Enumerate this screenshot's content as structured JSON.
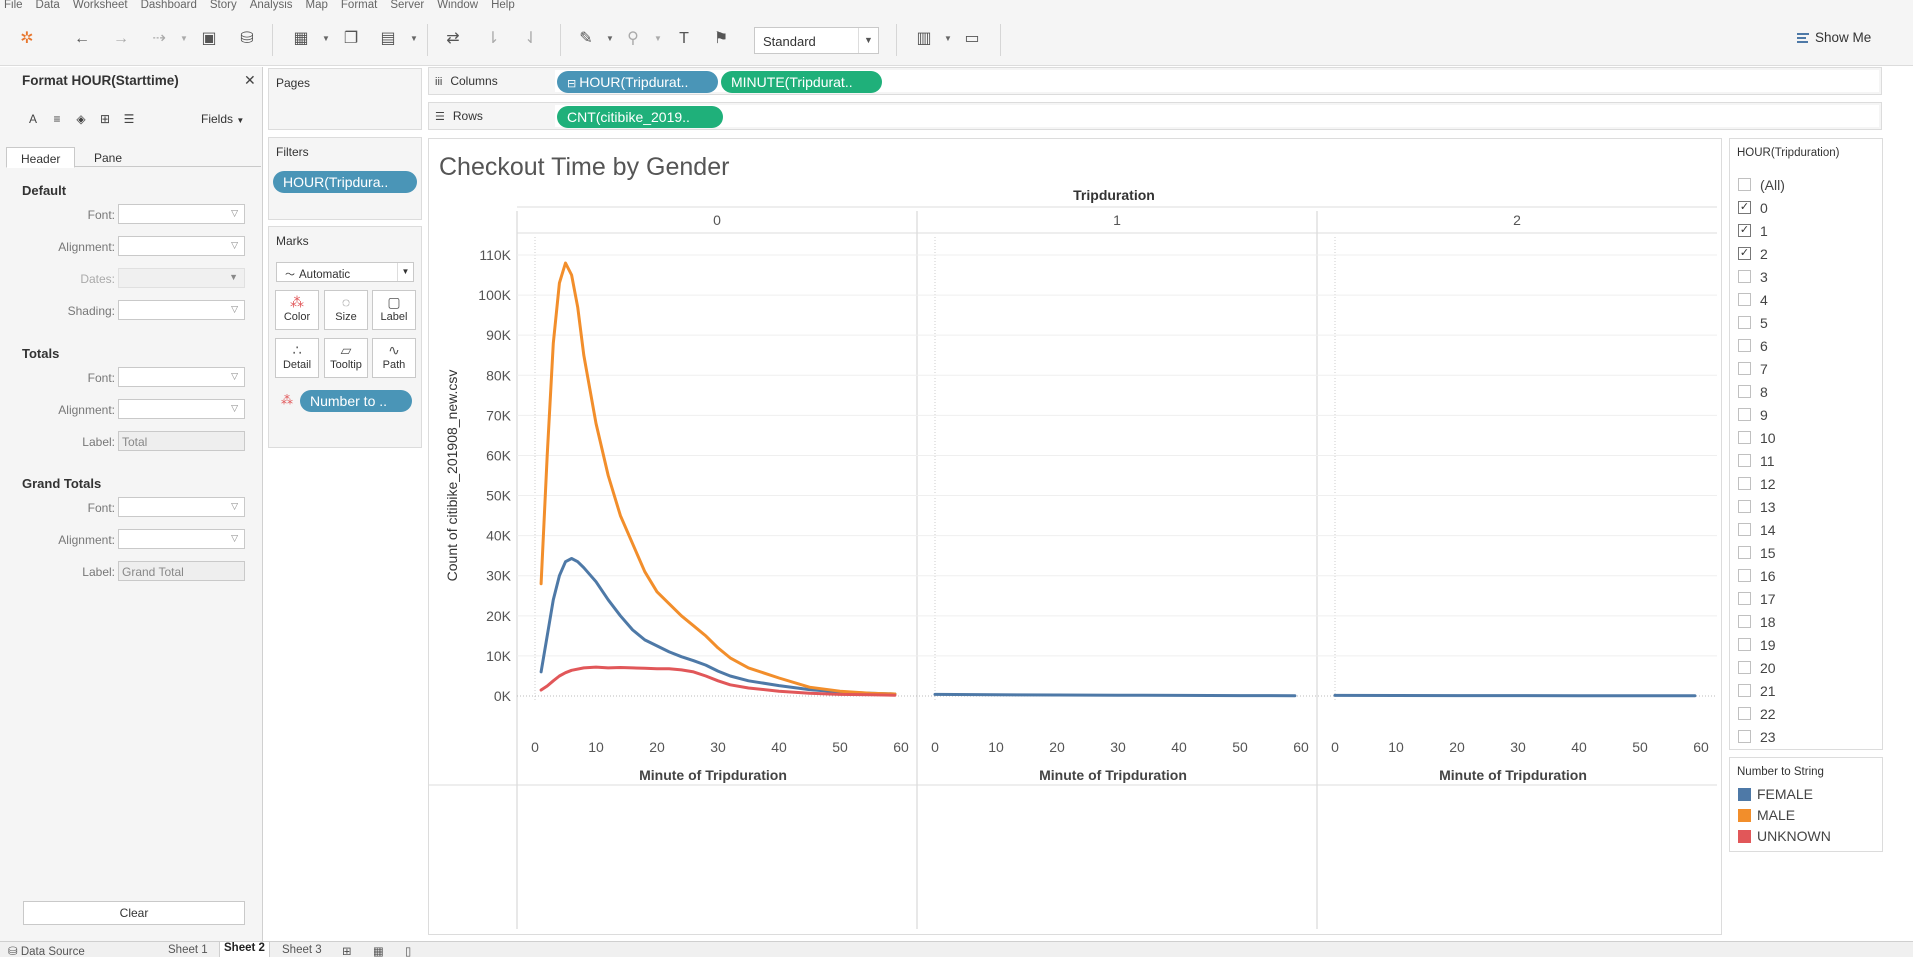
{
  "menu": [
    "File",
    "Data",
    "Worksheet",
    "Dashboard",
    "Story",
    "Analysis",
    "Map",
    "Format",
    "Server",
    "Window",
    "Help"
  ],
  "toolbar": {
    "fit_value": "Standard",
    "show_me_label": "Show Me"
  },
  "format_pane": {
    "title": "Format HOUR(Starttime)",
    "fields_label": "Fields",
    "tabs": [
      "Header",
      "Pane"
    ],
    "sections": {
      "default_title": "Default",
      "font_label": "Font:",
      "alignment_label": "Alignment:",
      "dates_label": "Dates:",
      "shading_label": "Shading:",
      "totals_title": "Totals",
      "totals_font_label": "Font:",
      "totals_alignment_label": "Alignment:",
      "totals_label_label": "Label:",
      "totals_label_value": "Total",
      "grand_totals_title": "Grand Totals",
      "grand_font_label": "Font:",
      "grand_alignment_label": "Alignment:",
      "grand_label_label": "Label:",
      "grand_label_value": "Grand Total"
    },
    "clear_label": "Clear"
  },
  "cards": {
    "pages_title": "Pages",
    "filters_title": "Filters",
    "filter_pill": "HOUR(Tripdura..",
    "marks_title": "Marks",
    "mark_type": "Automatic",
    "mark_buttons": [
      "Color",
      "Size",
      "Label",
      "Detail",
      "Tooltip",
      "Path"
    ],
    "color_pill": "Number to .."
  },
  "shelves": {
    "columns_label": "Columns",
    "columns_pills": [
      "HOUR(Tripdurat..",
      "MINUTE(Tripdurat.."
    ],
    "rows_label": "Rows",
    "rows_pills": [
      "CNT(citibike_2019.."
    ]
  },
  "viz": {
    "title": "Checkout Time by Gender",
    "column_header": "Tripduration",
    "y_axis_label": "Count of citibike_201908_new.csv",
    "x_axis_label": "Minute of Tripduration",
    "panels": [
      "0",
      "1",
      "2"
    ],
    "y_ticks": [
      "0K",
      "10K",
      "20K",
      "30K",
      "40K",
      "50K",
      "60K",
      "70K",
      "80K",
      "90K",
      "100K",
      "110K"
    ],
    "x_ticks": [
      "0",
      "10",
      "20",
      "30",
      "40",
      "50",
      "60"
    ]
  },
  "chart_data": {
    "type": "line",
    "title": "Checkout Time by Gender",
    "xlabel": "Minute of Tripduration",
    "ylabel": "Count of citibike_201908_new.csv",
    "ylim": [
      0,
      110000
    ],
    "xlim": [
      0,
      60
    ],
    "panel_dimension": "Tripduration",
    "legend_position": "right",
    "series": [
      {
        "name": "FEMALE",
        "color": "#4e79a7",
        "panel": "0",
        "x": [
          1,
          2,
          3,
          4,
          5,
          6,
          7,
          8,
          10,
          12,
          14,
          16,
          18,
          20,
          22,
          24,
          26,
          28,
          30,
          32,
          35,
          40,
          45,
          50,
          55,
          59
        ],
        "y": [
          6000,
          15000,
          24000,
          30000,
          33500,
          34300,
          33500,
          32000,
          28500,
          24000,
          20000,
          16500,
          14000,
          12500,
          11000,
          9800,
          8800,
          7700,
          6200,
          5000,
          3800,
          2600,
          1600,
          1000,
          700,
          500
        ]
      },
      {
        "name": "MALE",
        "color": "#f28e2b",
        "panel": "0",
        "x": [
          1,
          2,
          3,
          4,
          5,
          6,
          7,
          8,
          10,
          12,
          14,
          16,
          18,
          20,
          22,
          24,
          26,
          28,
          30,
          32,
          35,
          40,
          45,
          50,
          55,
          59
        ],
        "y": [
          28000,
          60000,
          88000,
          103000,
          108000,
          105000,
          97000,
          85000,
          68000,
          55000,
          45000,
          38000,
          31000,
          26000,
          23000,
          20000,
          17500,
          15000,
          12000,
          9500,
          7000,
          4500,
          2200,
          1200,
          700,
          500
        ]
      },
      {
        "name": "UNKNOWN",
        "color": "#e15759",
        "panel": "0",
        "x": [
          1,
          2,
          3,
          4,
          5,
          6,
          8,
          10,
          12,
          14,
          16,
          18,
          20,
          22,
          24,
          26,
          28,
          30,
          32,
          35,
          40,
          45,
          50,
          55,
          59
        ],
        "y": [
          1500,
          2500,
          3800,
          5000,
          5800,
          6400,
          7000,
          7200,
          7000,
          7100,
          7000,
          6900,
          6800,
          6800,
          6500,
          6000,
          5000,
          3800,
          2800,
          2000,
          1200,
          700,
          400,
          300,
          200
        ]
      },
      {
        "name": "FEMALE",
        "color": "#4e79a7",
        "panel": "1",
        "x": [
          0,
          10,
          20,
          30,
          40,
          50,
          59
        ],
        "y": [
          400,
          300,
          250,
          200,
          150,
          100,
          80
        ]
      },
      {
        "name": "FEMALE",
        "color": "#4e79a7",
        "panel": "2",
        "x": [
          0,
          10,
          20,
          30,
          40,
          50,
          59
        ],
        "y": [
          150,
          120,
          100,
          90,
          80,
          70,
          60
        ]
      }
    ]
  },
  "hour_filter": {
    "title": "HOUR(Tripduration)",
    "items": [
      {
        "label": "(All)",
        "checked": false
      },
      {
        "label": "0",
        "checked": true
      },
      {
        "label": "1",
        "checked": true
      },
      {
        "label": "2",
        "checked": true
      },
      {
        "label": "3",
        "checked": false
      },
      {
        "label": "4",
        "checked": false
      },
      {
        "label": "5",
        "checked": false
      },
      {
        "label": "6",
        "checked": false
      },
      {
        "label": "7",
        "checked": false
      },
      {
        "label": "8",
        "checked": false
      },
      {
        "label": "9",
        "checked": false
      },
      {
        "label": "10",
        "checked": false
      },
      {
        "label": "11",
        "checked": false
      },
      {
        "label": "12",
        "checked": false
      },
      {
        "label": "13",
        "checked": false
      },
      {
        "label": "14",
        "checked": false
      },
      {
        "label": "15",
        "checked": false
      },
      {
        "label": "16",
        "checked": false
      },
      {
        "label": "17",
        "checked": false
      },
      {
        "label": "18",
        "checked": false
      },
      {
        "label": "19",
        "checked": false
      },
      {
        "label": "20",
        "checked": false
      },
      {
        "label": "21",
        "checked": false
      },
      {
        "label": "22",
        "checked": false
      },
      {
        "label": "23",
        "checked": false
      }
    ]
  },
  "legend": {
    "title": "Number to String",
    "items": [
      {
        "label": "FEMALE",
        "color": "#4e79a7"
      },
      {
        "label": "MALE",
        "color": "#f28e2b"
      },
      {
        "label": "UNKNOWN",
        "color": "#e15759"
      }
    ]
  },
  "bottom_tabs": [
    "Data Source",
    "Sheet 1",
    "Sheet 2",
    "Sheet 3"
  ]
}
